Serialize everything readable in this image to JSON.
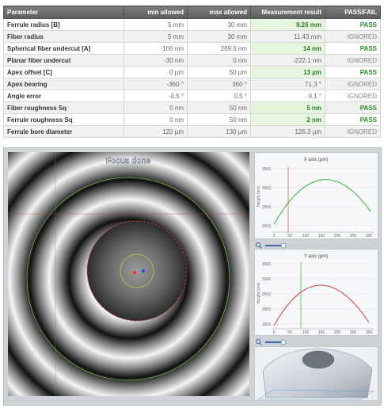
{
  "table": {
    "headers": [
      "Parameter",
      "min allowed",
      "max allowed",
      "Measurement result",
      "PASS/FAIL"
    ],
    "rows": [
      {
        "parameter": "Ferrule radius [B]",
        "min": "5 mm",
        "max": "30 mm",
        "result": "9.26 mm",
        "status": "PASS"
      },
      {
        "parameter": "Fiber radius",
        "min": "5 mm",
        "max": "30 mm",
        "result": "11.43 mm",
        "status": "IGNORED"
      },
      {
        "parameter": "Spherical fiber undercut [A]",
        "min": "-100 nm",
        "max": "269.6 nm",
        "result": "14 nm",
        "status": "PASS"
      },
      {
        "parameter": "Planar fiber undercut",
        "min": "-30 nm",
        "max": "0 nm",
        "result": "-222.1 nm",
        "status": "IGNORED"
      },
      {
        "parameter": "Apex offset [C]",
        "min": "0 µm",
        "max": "50 µm",
        "result": "13 µm",
        "status": "PASS"
      },
      {
        "parameter": "Apex bearing",
        "min": "-360 °",
        "max": "360 °",
        "result": "71.3 °",
        "status": "IGNORED"
      },
      {
        "parameter": "Angle error",
        "min": "-0.5 °",
        "max": "0.5 °",
        "result": "0.1 °",
        "status": "IGNORED"
      },
      {
        "parameter": "Fiber roughness Sq",
        "min": "0 nm",
        "max": "50 nm",
        "result": "5 nm",
        "status": "PASS"
      },
      {
        "parameter": "Ferrule roughness Sq",
        "min": "0 nm",
        "max": "50 nm",
        "result": "2 nm",
        "status": "PASS"
      },
      {
        "parameter": "Ferrule bore diameter",
        "min": "120 µm",
        "max": "130 µm",
        "result": "126.3 µm",
        "status": "IGNORED"
      }
    ]
  },
  "interferogram": {
    "overlay_text": "Focus done"
  },
  "charts": {
    "x_axis": {
      "title": "X axis (µm)",
      "ylabel": "Height (nm)",
      "yticks": [
        "3500",
        "3000",
        "2500",
        "2000"
      ],
      "xticks": [
        "0",
        "50",
        "100",
        "150",
        "200",
        "250",
        "300"
      ],
      "curve_color": "#35b535",
      "marker_color": "#e04040",
      "zoom_icon": "magnifier-icon",
      "slider_level": 0.17
    },
    "y_axis": {
      "title": "Y axis (µm)",
      "ylabel": "Height (nm)",
      "yticks": [
        "3500",
        "3000",
        "2500",
        "2000",
        "1500"
      ],
      "xticks": [
        "0",
        "50",
        "100",
        "150",
        "200",
        "250",
        "300"
      ],
      "curve_color": "#d23a3a",
      "marker_color": "#35b535",
      "zoom_icon": "magnifier-icon",
      "slider_level": 0.17
    }
  },
  "colors": {
    "pass_bg": "#e6f5dd",
    "pass_text": "#2f8a2f",
    "header_bg": "#6b6b6b"
  }
}
